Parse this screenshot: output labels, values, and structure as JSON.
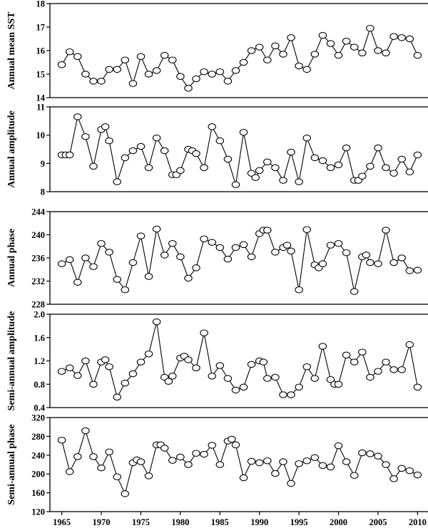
{
  "chart_data": [
    {
      "type": "line",
      "ylabel": "Annual mean SST",
      "ylim": [
        14,
        18
      ],
      "yticks": [
        14,
        15,
        16,
        17,
        18
      ],
      "xlim": [
        1963.5,
        2011.5
      ],
      "x": [
        1965,
        1966,
        1967,
        1968,
        1969,
        1970,
        1971,
        1972,
        1973,
        1974,
        1975,
        1976,
        1977,
        1978,
        1979,
        1980,
        1981,
        1982,
        1983,
        1984,
        1985,
        1986,
        1987,
        1988,
        1989,
        1990,
        1991,
        1992,
        1993,
        1994,
        1995,
        1996,
        1997,
        1998,
        1999,
        2000,
        2001,
        2002,
        2003,
        2004,
        2005,
        2006,
        2007,
        2008,
        2009,
        2010
      ],
      "values": [
        15.4,
        15.95,
        15.75,
        15.0,
        14.7,
        14.7,
        15.2,
        15.2,
        15.6,
        14.6,
        15.75,
        15.0,
        15.15,
        15.8,
        15.6,
        14.9,
        14.4,
        14.8,
        15.1,
        15.0,
        15.1,
        14.7,
        15.15,
        15.5,
        16.0,
        16.15,
        15.6,
        16.2,
        15.85,
        16.55,
        15.35,
        15.2,
        15.85,
        16.65,
        16.3,
        15.8,
        16.4,
        16.15,
        15.9,
        16.95,
        16.0,
        15.9,
        16.6,
        16.55,
        16.5,
        15.8
      ]
    },
    {
      "type": "line",
      "ylabel": "Annual amplitude",
      "ylim": [
        8,
        11
      ],
      "yticks": [
        8,
        9,
        10,
        11
      ],
      "xlim": [
        1963.5,
        2011.5
      ],
      "x": [
        1965,
        1965.5,
        1966,
        1967,
        1968,
        1969,
        1970,
        1970.5,
        1971,
        1972,
        1973,
        1974,
        1975,
        1976,
        1977,
        1978,
        1979,
        1979.5,
        1980,
        1981,
        1981.5,
        1982,
        1983,
        1984,
        1985,
        1986,
        1987,
        1988,
        1989,
        1989.5,
        1990,
        1991,
        1992,
        1993,
        1994,
        1995,
        1996,
        1997,
        1998,
        1999,
        2000,
        2001,
        2002,
        2002.5,
        2003,
        2004,
        2005,
        2006,
        2007,
        2008,
        2009,
        2010
      ],
      "values": [
        9.3,
        9.3,
        9.3,
        10.65,
        9.95,
        8.9,
        10.2,
        10.3,
        9.8,
        8.35,
        9.2,
        9.45,
        9.6,
        8.85,
        9.9,
        9.45,
        8.6,
        8.6,
        8.75,
        9.5,
        9.45,
        9.35,
        8.85,
        10.3,
        9.8,
        9.15,
        8.25,
        10.1,
        8.65,
        8.5,
        8.75,
        9.05,
        8.85,
        8.4,
        9.4,
        8.35,
        9.9,
        9.2,
        9.1,
        8.85,
        8.95,
        9.55,
        8.4,
        8.4,
        8.55,
        8.9,
        9.55,
        8.85,
        8.65,
        9.15,
        8.7,
        9.3
      ]
    },
    {
      "type": "line",
      "ylabel": "Annual phase",
      "ylim": [
        228,
        244
      ],
      "yticks": [
        228,
        232,
        236,
        240,
        244
      ],
      "xlim": [
        1963.5,
        2011.5
      ],
      "x": [
        1965,
        1966,
        1967,
        1968,
        1969,
        1970,
        1971,
        1972,
        1973,
        1974,
        1975,
        1976,
        1977,
        1978,
        1979,
        1980,
        1981,
        1982,
        1983,
        1984,
        1985,
        1986,
        1987,
        1988,
        1989,
        1990,
        1990.5,
        1991,
        1992,
        1993,
        1993.5,
        1994,
        1995,
        1996,
        1997,
        1997.5,
        1998,
        1999,
        2000,
        2001,
        2002,
        2003,
        2003.5,
        2004,
        2005,
        2006,
        2007,
        2008,
        2009,
        2010
      ],
      "values": [
        235.0,
        235.7,
        231.8,
        236.0,
        234.5,
        238.5,
        237.0,
        232.3,
        230.5,
        235.2,
        239.8,
        232.8,
        241.0,
        236.5,
        238.5,
        236.2,
        232.5,
        234.3,
        239.3,
        238.7,
        237.8,
        235.8,
        237.8,
        238.3,
        236.2,
        240.2,
        240.8,
        240.8,
        237.0,
        237.8,
        238.2,
        237.2,
        230.5,
        240.9,
        234.8,
        234.3,
        235.0,
        238.2,
        238.5,
        236.9,
        230.2,
        236.2,
        236.5,
        235.2,
        235.0,
        240.8,
        235.2,
        236.0,
        233.8,
        233.9
      ]
    },
    {
      "type": "line",
      "ylabel": "Semi-annual amplitude",
      "ylim": [
        0.4,
        2.0
      ],
      "yticks": [
        0.4,
        0.8,
        1.2,
        1.6,
        2.0
      ],
      "ytick_labels": [
        "0.4",
        "0.8",
        "1.2",
        "1.6",
        "2.0"
      ],
      "xlim": [
        1963.5,
        2011.5
      ],
      "x": [
        1965,
        1966,
        1967,
        1968,
        1969,
        1970,
        1970.5,
        1971,
        1972,
        1973,
        1974,
        1975,
        1976,
        1977,
        1978,
        1978.5,
        1979,
        1980,
        1980.5,
        1981,
        1982,
        1983,
        1984,
        1985,
        1986,
        1987,
        1988,
        1989,
        1990,
        1990.5,
        1991,
        1992,
        1993,
        1994,
        1995,
        1996,
        1997,
        1998,
        1999,
        1999.5,
        2000,
        2001,
        2002,
        2003,
        2004,
        2005,
        2006,
        2007,
        2008,
        2009,
        2010
      ],
      "values": [
        1.02,
        1.08,
        0.95,
        1.2,
        0.8,
        1.18,
        1.22,
        1.1,
        0.58,
        0.82,
        0.98,
        1.18,
        1.32,
        1.87,
        0.92,
        0.85,
        0.94,
        1.25,
        1.28,
        1.22,
        1.08,
        1.68,
        0.94,
        1.12,
        0.9,
        0.7,
        0.75,
        1.14,
        1.2,
        1.18,
        0.9,
        0.92,
        0.62,
        0.62,
        0.75,
        1.1,
        0.9,
        1.45,
        0.88,
        0.8,
        0.8,
        1.3,
        1.18,
        1.35,
        0.92,
        1.02,
        1.18,
        1.05,
        1.05,
        1.48,
        0.75
      ]
    },
    {
      "type": "line",
      "ylabel": "Semi-annual phase",
      "ylim": [
        120,
        320
      ],
      "yticks": [
        120,
        160,
        200,
        240,
        280,
        320
      ],
      "xlim": [
        1963.5,
        2011.5
      ],
      "x": [
        1965,
        1966,
        1967,
        1968,
        1969,
        1970,
        1971,
        1972,
        1973,
        1974,
        1974.5,
        1975,
        1976,
        1977,
        1977.5,
        1978,
        1979,
        1980,
        1981,
        1982,
        1983,
        1984,
        1985,
        1986,
        1986.5,
        1987,
        1988,
        1989,
        1990,
        1991,
        1992,
        1993,
        1994,
        1995,
        1996,
        1997,
        1998,
        1999,
        2000,
        2001,
        2002,
        2003,
        2004,
        2005,
        2006,
        2007,
        2008,
        2009,
        2010
      ],
      "values": [
        272,
        205,
        237,
        292,
        237,
        213,
        247,
        194,
        158,
        224,
        230,
        226,
        196,
        262,
        262,
        255,
        229,
        236,
        220,
        244,
        242,
        261,
        220,
        270,
        274,
        262,
        192,
        227,
        224,
        228,
        201,
        226,
        180,
        222,
        228,
        235,
        218,
        215,
        260,
        226,
        197,
        245,
        243,
        238,
        220,
        190,
        212,
        207,
        198
      ]
    }
  ],
  "x_axis": {
    "ticks": [
      1965,
      1970,
      1975,
      1980,
      1985,
      1990,
      1995,
      2000,
      2005,
      2010
    ],
    "labels": [
      "1965",
      "1970",
      "1975",
      "1980",
      "1985",
      "1990",
      "1995",
      "2000",
      "2005",
      "2010"
    ]
  }
}
